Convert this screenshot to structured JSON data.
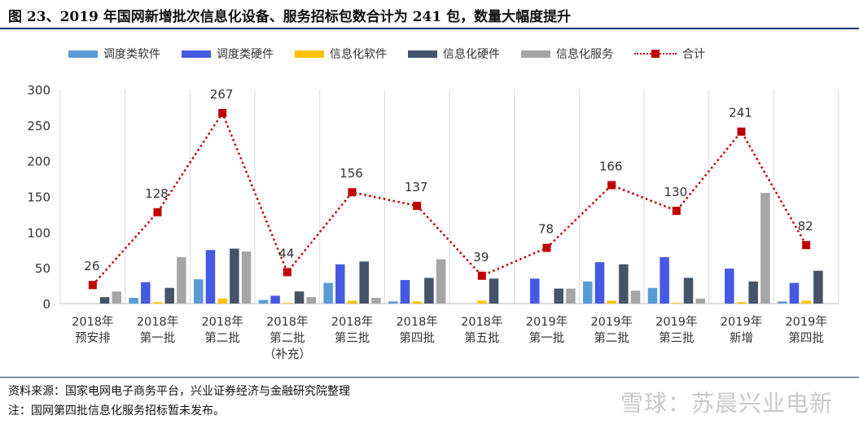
{
  "header": {
    "title": "图 23、2019 年国网新增批次信息化设备、服务招标包数合计为 241 包，数量大幅度提升"
  },
  "footer": {
    "source": "资料来源：国家电网电子商务平台，兴业证券经济与金融研究院整理",
    "note": "注：国网第四批信息化服务招标暂未发布。",
    "watermark": "雪球：苏晨兴业电新"
  },
  "chart_data": {
    "type": "bar",
    "categories": [
      [
        "2018年",
        "预安排"
      ],
      [
        "2018年",
        "第一批"
      ],
      [
        "2018年",
        "第二批"
      ],
      [
        "2018年",
        "第二批",
        "（补充）"
      ],
      [
        "2018年",
        "第三批"
      ],
      [
        "2018年",
        "第四批"
      ],
      [
        "2018年",
        "第五批"
      ],
      [
        "2019年",
        "第一批"
      ],
      [
        "2019年",
        "第二批"
      ],
      [
        "2019年",
        "第三批"
      ],
      [
        "2019年",
        "新增"
      ],
      [
        "2019年",
        "第四批"
      ]
    ],
    "series": [
      {
        "name": "调度类软件",
        "color": "#5b9bd5",
        "values": [
          0,
          8,
          34,
          5,
          29,
          3,
          0,
          0,
          31,
          22,
          0,
          3
        ]
      },
      {
        "name": "调度类硬件",
        "color": "#4659e2",
        "values": [
          0,
          30,
          75,
          11,
          55,
          33,
          0,
          35,
          58,
          65,
          49,
          29
        ]
      },
      {
        "name": "信息化软件",
        "color": "#ffc000",
        "values": [
          0,
          2,
          7,
          1,
          4,
          3,
          4,
          0,
          4,
          1,
          2,
          4
        ]
      },
      {
        "name": "信息化硬件",
        "color": "#44546a",
        "values": [
          9,
          22,
          77,
          17,
          59,
          36,
          35,
          21,
          55,
          36,
          31,
          46
        ]
      },
      {
        "name": "信息化服务",
        "color": "#a5a5a5",
        "values": [
          17,
          65,
          73,
          9,
          8,
          62,
          0,
          21,
          18,
          7,
          155,
          0
        ]
      }
    ],
    "total": {
      "name": "合计",
      "type": "line",
      "color": "#c00000",
      "values": [
        26,
        128,
        267,
        44,
        156,
        137,
        39,
        78,
        166,
        130,
        241,
        82
      ],
      "labels": [
        "26",
        "128",
        "267",
        "44",
        "156",
        "137",
        "39",
        "78",
        "166",
        "130",
        "241",
        "82"
      ]
    },
    "ylim": [
      0,
      300
    ],
    "yticks": [
      "0",
      "50",
      "100",
      "150",
      "200",
      "250",
      "300"
    ],
    "grid": "vertical separators",
    "legend_position": "top"
  }
}
